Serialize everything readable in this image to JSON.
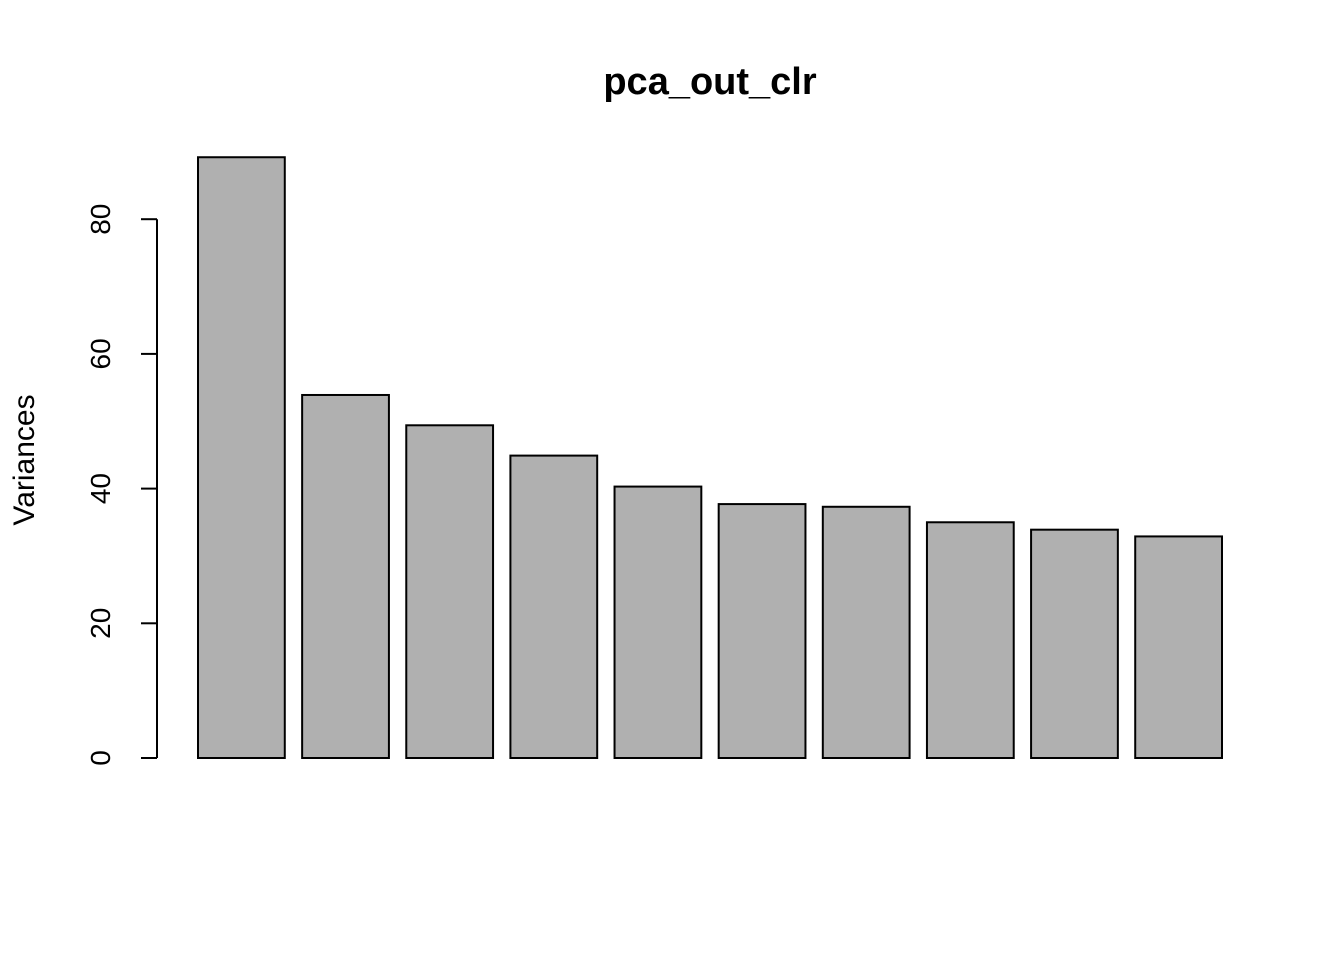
{
  "chart_data": {
    "type": "bar",
    "title": "pca_out_clr",
    "xlabel": "",
    "ylabel": "Variances",
    "ylim": [
      0,
      89
    ],
    "yticks": [
      0,
      20,
      40,
      60,
      80
    ],
    "values": [
      89.2,
      53.9,
      49.4,
      44.9,
      40.3,
      37.7,
      37.3,
      35.0,
      33.9,
      32.9
    ],
    "grid": false,
    "legend": "none",
    "colors": {
      "bar_fill": "#b0b0b0",
      "bar_stroke": "#000000",
      "axis": "#000000",
      "background": "#ffffff"
    }
  }
}
